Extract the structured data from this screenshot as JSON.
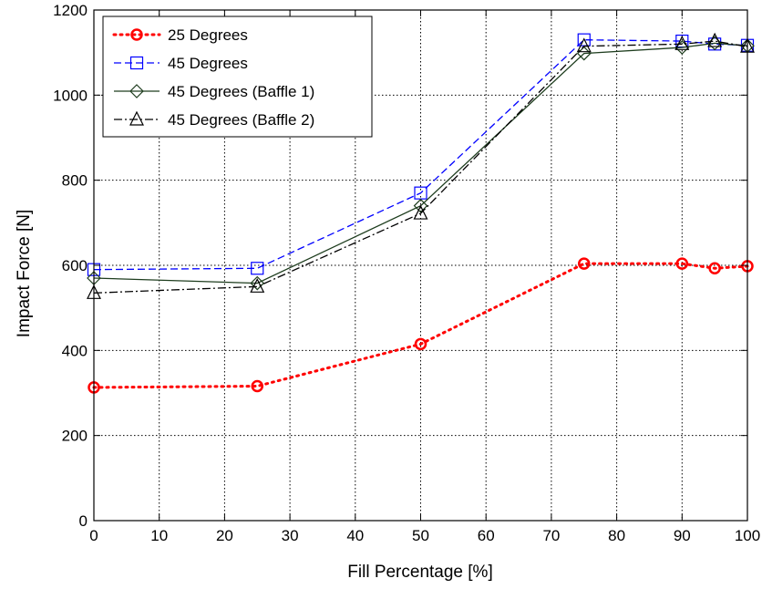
{
  "chart_data": {
    "type": "line",
    "title": "",
    "xlabel": "Fill Percentage [%]",
    "ylabel": "Impact Force [N]",
    "xlim": [
      0,
      100
    ],
    "ylim": [
      0,
      1200
    ],
    "xticks": [
      0,
      10,
      20,
      30,
      40,
      50,
      60,
      70,
      80,
      90,
      100
    ],
    "yticks": [
      0,
      200,
      400,
      600,
      800,
      1000,
      1200
    ],
    "grid": true,
    "legend_position": "top-left",
    "x": [
      0,
      25,
      50,
      75,
      90,
      95,
      100
    ],
    "series": [
      {
        "name": "25 Degrees",
        "values": [
          313,
          316,
          415,
          604,
          604,
          593,
          598
        ],
        "color": "#ff0000",
        "line_style": "dotted",
        "marker": "circle"
      },
      {
        "name": "45 Degrees",
        "values": [
          590,
          593,
          770,
          1130,
          1127,
          1120,
          1117
        ],
        "color": "#0000ff",
        "line_style": "dashed",
        "marker": "square"
      },
      {
        "name": "45 Degrees (Baffle 1)",
        "values": [
          570,
          558,
          740,
          1098,
          1112,
          1122,
          1116
        ],
        "color": "#1e3d1e",
        "line_style": "solid",
        "marker": "diamond"
      },
      {
        "name": "45 Degrees (Baffle 2)",
        "values": [
          535,
          550,
          722,
          1115,
          1120,
          1127,
          1114
        ],
        "color": "#000000",
        "line_style": "dashdot",
        "marker": "triangle"
      }
    ]
  }
}
